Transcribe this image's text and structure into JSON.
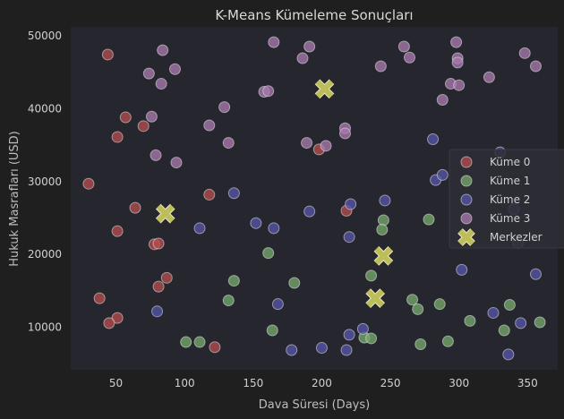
{
  "chart_data": {
    "type": "scatter",
    "title": "K-Means Kümeleme Sonuçları",
    "xlabel": "Dava Süresi (Days)",
    "ylabel": "Hukuk Masrafları (USD)",
    "xlim": [
      17,
      372
    ],
    "ylim": [
      4200,
      51200
    ],
    "xticks": [
      50,
      100,
      150,
      200,
      250,
      300,
      350
    ],
    "yticks": [
      10000,
      20000,
      30000,
      40000,
      50000
    ],
    "xtick_labels": [
      "50",
      "100",
      "150",
      "200",
      "250",
      "300",
      "350"
    ],
    "ytick_labels": [
      "10000",
      "20000",
      "30000",
      "40000",
      "50000"
    ],
    "grid": false,
    "legend_position": "right",
    "background": "#26262f",
    "series": [
      {
        "name": "Küme 0",
        "color": "#b24d4d",
        "points": [
          [
            44,
            47400
          ],
          [
            57,
            38800
          ],
          [
            70,
            37600
          ],
          [
            51,
            36100
          ],
          [
            30,
            29700
          ],
          [
            64,
            26400
          ],
          [
            51,
            23200
          ],
          [
            78,
            21400
          ],
          [
            81,
            21500
          ],
          [
            87,
            16800
          ],
          [
            81,
            15600
          ],
          [
            38,
            14000
          ],
          [
            51,
            11300
          ],
          [
            45,
            10600
          ],
          [
            118,
            28200
          ],
          [
            122,
            7300
          ],
          [
            198,
            34400
          ],
          [
            218,
            26000
          ]
        ]
      },
      {
        "name": "Küme 1",
        "color": "#74a86c",
        "points": [
          [
            136,
            16400
          ],
          [
            132,
            13700
          ],
          [
            161,
            20200
          ],
          [
            180,
            16100
          ],
          [
            164,
            9600
          ],
          [
            101,
            8000
          ],
          [
            111,
            8000
          ],
          [
            236,
            17100
          ],
          [
            245,
            24700
          ],
          [
            244,
            23400
          ],
          [
            266,
            13800
          ],
          [
            270,
            12500
          ],
          [
            278,
            24800
          ],
          [
            286,
            13200
          ],
          [
            231,
            8600
          ],
          [
            236,
            8500
          ],
          [
            272,
            7700
          ],
          [
            292,
            8100
          ],
          [
            308,
            10900
          ],
          [
            333,
            9600
          ],
          [
            337,
            13100
          ],
          [
            359,
            10700
          ]
        ]
      },
      {
        "name": "Küme 2",
        "color": "#5555a8",
        "points": [
          [
            111,
            23600
          ],
          [
            136,
            28400
          ],
          [
            152,
            24300
          ],
          [
            165,
            23600
          ],
          [
            168,
            13200
          ],
          [
            191,
            25900
          ],
          [
            220,
            22400
          ],
          [
            221,
            26900
          ],
          [
            246,
            27400
          ],
          [
            281,
            35800
          ],
          [
            283,
            30200
          ],
          [
            288,
            30900
          ],
          [
            330,
            34000
          ],
          [
            340,
            26200
          ],
          [
            343,
            21600
          ],
          [
            302,
            17900
          ],
          [
            356,
            17300
          ],
          [
            325,
            12000
          ],
          [
            345,
            10600
          ],
          [
            80,
            12200
          ],
          [
            230,
            9800
          ],
          [
            220,
            9000
          ],
          [
            178,
            6900
          ],
          [
            200,
            7200
          ],
          [
            218,
            6900
          ],
          [
            336,
            6300
          ]
        ]
      },
      {
        "name": "Küme 3",
        "color": "#a878ad",
        "points": [
          [
            84,
            48000
          ],
          [
            74,
            44800
          ],
          [
            93,
            45400
          ],
          [
            83,
            43400
          ],
          [
            76,
            38900
          ],
          [
            118,
            37700
          ],
          [
            79,
            33600
          ],
          [
            94,
            32600
          ],
          [
            129,
            40200
          ],
          [
            132,
            35300
          ],
          [
            158,
            42300
          ],
          [
            161,
            42400
          ],
          [
            165,
            49100
          ],
          [
            186,
            46900
          ],
          [
            191,
            48500
          ],
          [
            189,
            35300
          ],
          [
            203,
            34900
          ],
          [
            217,
            37300
          ],
          [
            217,
            36600
          ],
          [
            243,
            45800
          ],
          [
            260,
            48500
          ],
          [
            264,
            47000
          ],
          [
            298,
            49100
          ],
          [
            299,
            46900
          ],
          [
            299,
            46300
          ],
          [
            288,
            41200
          ],
          [
            294,
            43400
          ],
          [
            300,
            43200
          ],
          [
            322,
            44300
          ],
          [
            348,
            47600
          ],
          [
            356,
            45800
          ]
        ]
      }
    ],
    "centroids": {
      "name": "Merkezler",
      "color": "#bdbd5a",
      "points": [
        [
          86,
          25600
        ],
        [
          202,
          42700
        ],
        [
          245,
          19800
        ],
        [
          239,
          14000
        ]
      ]
    }
  }
}
